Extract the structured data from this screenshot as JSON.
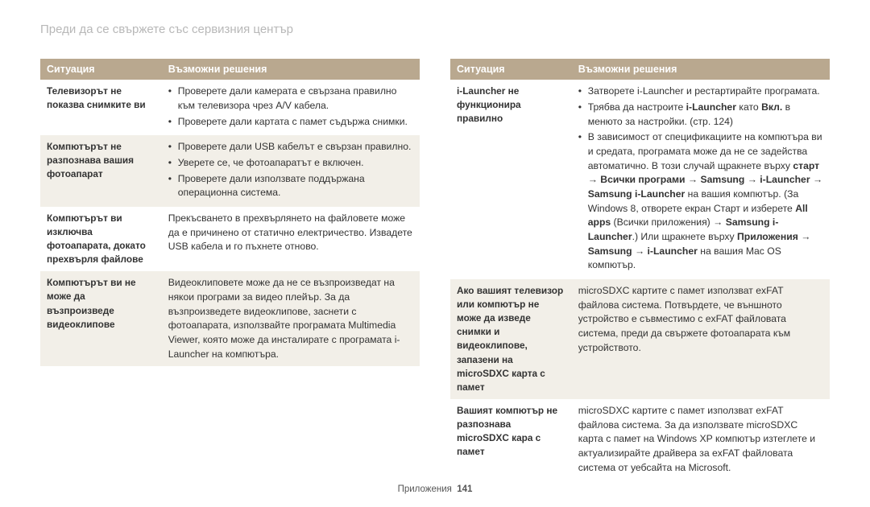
{
  "title": "Преди да се свържете със сервизния център",
  "header": {
    "situation": "Ситуация",
    "solution": "Възможни решения"
  },
  "footer": {
    "label": "Приложения",
    "page": "141"
  },
  "left": {
    "rows": [
      {
        "sit": "Телевизорът не показва снимките ви",
        "bullets": [
          "Проверете дали камерата е свързана правилно към телевизора чрез A/V кабела.",
          "Проверете дали картата с памет съдържа снимки."
        ]
      },
      {
        "sit": "Компютърът не разпознава вашия фотоапарат",
        "bullets": [
          "Проверете дали USB кабелът е свързан правилно.",
          "Уверете се, че фотоапаратът е включен.",
          "Проверете дали използвате поддържана операционна система."
        ]
      },
      {
        "sit": "Компютърът ви изключва фотоапарата, докато прехвърля файлове",
        "text": "Прекъсването в прехвърлянето на файловете може да е причинено от статично електричество. Извадете USB кабела и го пъхнете отново."
      },
      {
        "sit": "Компютърът ви не може да възпроизведе видеоклипове",
        "text": "Видеоклиповете може да не се възпроизведат на някои програми за видео плейър. За да възпроизведете видеоклипове, заснети с фотоапарата, използвайте програмата Multimedia Viewer, която може да инсталирате с програмата i-Launcher на компютъра."
      }
    ]
  },
  "right": {
    "rows": [
      {
        "sit": "i-Launcher не функционира правилно"
      },
      {
        "sit": "Ако вашият телевизор или компютър не може да изведе снимки и видеоклипове, запазени на microSDXC карта с памет",
        "text": "microSDXC картите с памет използват exFAT файлова система. Потвърдете, че външното устройство е съвместимо с exFAT файловата система, преди да свържете фотоапарата към устройството."
      },
      {
        "sit": "Вашият компютър не разпознава microSDXC кара с памет",
        "text": "microSDXC картите с памет използват exFAT файлова система. За да използвате microSDXC карта с памет на Windows XP компютър изтеглете и актуализирайте драйвера за exFAT файловата система от уебсайта на Microsoft."
      }
    ],
    "ilauncher": {
      "b1": "Затворете i-Launcher и рестартирайте програмата.",
      "b2_pre": "Трябва да настроите ",
      "b2_bold1": "i-Launcher",
      "b2_mid1": " като ",
      "b2_bold2": "Вкл.",
      "b2_post": " в менюто за настройки. (стр. 124)",
      "b3_line1": "В зависимост от спецификациите на компютъра ви и средата, програмата може да не се задейства автоматично. В този случай щракнете върху ",
      "b3_start": "старт",
      "b3_arrow1": " → ",
      "b3_prog": "Всички програми",
      "b3_arrow2": " → ",
      "b3_samsung": "Samsung",
      "b3_arrow3": " → ",
      "b3_il": "i-Launcher",
      "b3_arrow4": " → ",
      "b3_sil": "Samsung i-Launcher",
      "b3_tail1": " на вашия компютър. (За Windows 8, отворете екран Старт и изберете ",
      "b3_allapps": "All apps",
      "b3_allapps_par": " (Всички приложения) → ",
      "b3_samsung2": "Samsung i-Launcher",
      "b3_tail2": ".) Или щракнете върху ",
      "b3_app": "Приложения",
      "b3_arrow5": " → ",
      "b3_samsung3": "Samsung",
      "b3_arrow6": " → ",
      "b3_il2": "i-Launcher",
      "b3_tail3": " на вашия Mac OS компютър."
    }
  }
}
